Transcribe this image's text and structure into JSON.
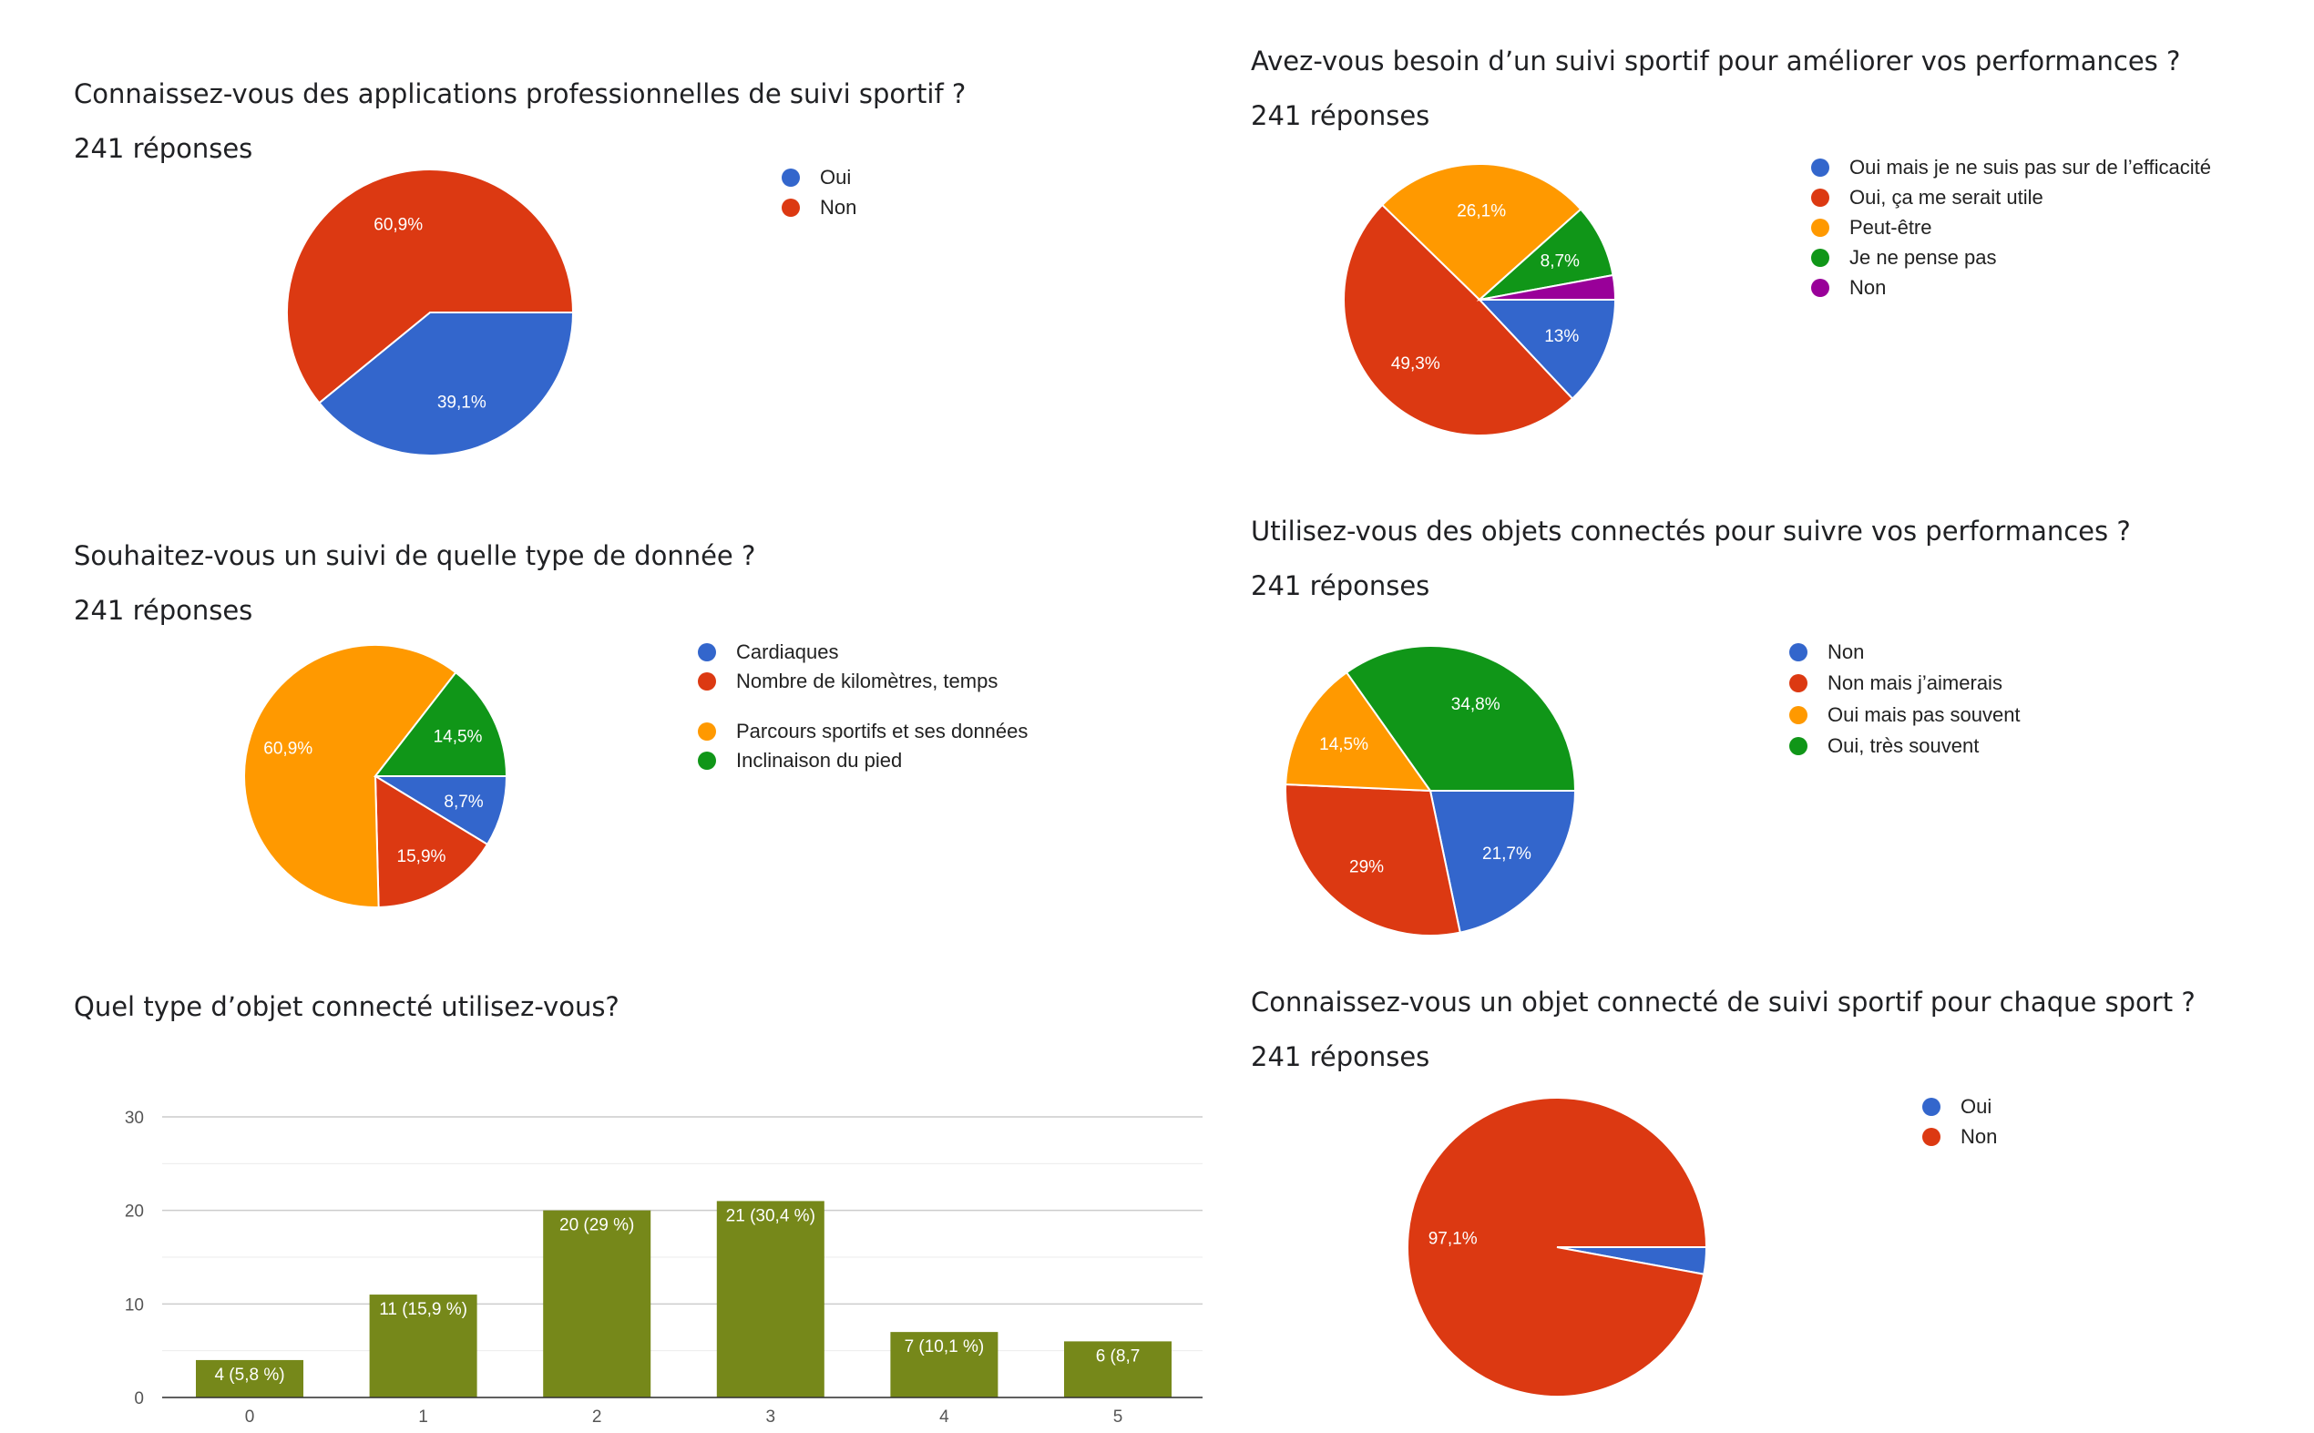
{
  "chart_data": [
    {
      "type": "pie",
      "title": "Connaissez-vous des applications professionnelles de suivi sportif ?",
      "subtitle": "241 réponses",
      "categories": [
        "Oui",
        "Non"
      ],
      "values": [
        39.1,
        60.9
      ],
      "labels": [
        "39,1%",
        "60,9%"
      ],
      "colors": [
        "#3366cc",
        "#dc3912"
      ],
      "legend_position": "right"
    },
    {
      "type": "pie",
      "title": "Avez-vous besoin d’un suivi sportif pour améliorer vos performances ?",
      "subtitle": "241 réponses",
      "categories": [
        "Oui mais je ne suis pas sur de l’efficacité",
        "Oui, ça me serait utile",
        "Peut-être",
        "Je ne pense pas",
        "Non"
      ],
      "values": [
        13,
        49.3,
        26.1,
        8.7,
        2.9
      ],
      "labels": [
        "13%",
        "49,3%",
        "26,1%",
        "8,7%",
        ""
      ],
      "colors": [
        "#3366cc",
        "#dc3912",
        "#ff9900",
        "#109618",
        "#990099"
      ],
      "legend_position": "right"
    },
    {
      "type": "pie",
      "title": "Souhaitez-vous un suivi de quelle type de donnée ?",
      "subtitle": "241 réponses",
      "categories": [
        "Cardiaques",
        "Nombre de kilomètres, temps",
        "Parcours sportifs et ses données",
        "Inclinaison du pied"
      ],
      "values": [
        8.7,
        15.9,
        60.9,
        14.5
      ],
      "labels": [
        "8,7%",
        "15,9%",
        "60,9%",
        "14,5%"
      ],
      "colors": [
        "#3366cc",
        "#dc3912",
        "#ff9900",
        "#109618"
      ],
      "legend_position": "right"
    },
    {
      "type": "pie",
      "title": "Utilisez-vous des objets connectés pour suivre vos performances ?",
      "subtitle": "241 réponses",
      "categories": [
        "Non",
        "Non mais j’aimerais",
        "Oui mais pas souvent",
        "Oui, très souvent"
      ],
      "values": [
        21.7,
        29,
        14.5,
        34.8
      ],
      "labels": [
        "21,7%",
        "29%",
        "14,5%",
        "34,8%"
      ],
      "colors": [
        "#3366cc",
        "#dc3912",
        "#ff9900",
        "#109618"
      ],
      "legend_position": "right"
    },
    {
      "type": "bar",
      "title": "Quel type d’objet connecté utilisez-vous?",
      "categories": [
        "0",
        "1",
        "2",
        "3",
        "4",
        "5"
      ],
      "values": [
        4,
        11,
        20,
        21,
        7,
        6
      ],
      "labels": [
        "4 (5,8 %)",
        "11 (15,9 %)",
        "20 (29 %)",
        "21 (30,4 %)",
        "7 (10,1 %)",
        "6 (8,7"
      ],
      "ylim": [
        0,
        30
      ],
      "yticks": [
        0,
        10,
        20,
        30
      ],
      "color": "#76881a",
      "grid": true
    },
    {
      "type": "pie",
      "title": "Connaissez-vous un objet connecté de suivi sportif pour chaque sport ?",
      "subtitle": "241 réponses",
      "categories": [
        "Oui",
        "Non"
      ],
      "values": [
        2.9,
        97.1
      ],
      "labels": [
        "",
        "97,1%"
      ],
      "colors": [
        "#3366cc",
        "#dc3912"
      ],
      "legend_position": "right"
    }
  ]
}
